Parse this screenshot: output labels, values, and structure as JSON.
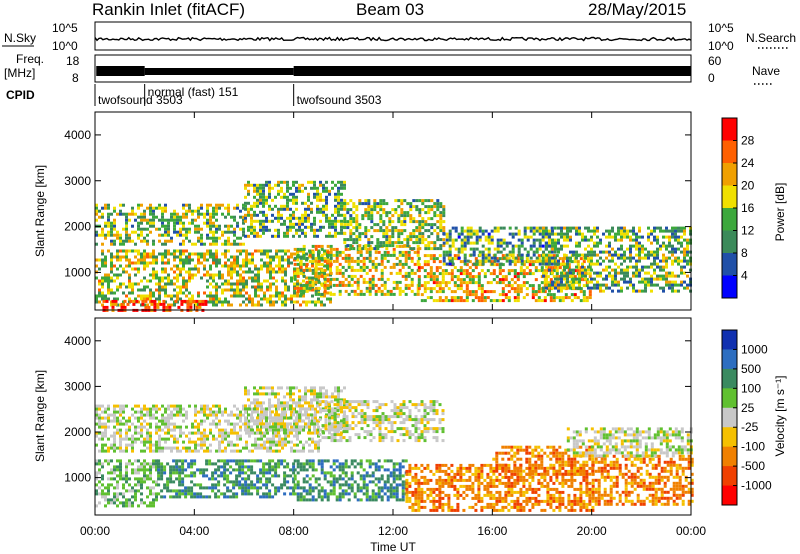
{
  "header": {
    "station": "Rankin Inlet (fitACF)",
    "beam": "Beam 03",
    "date": "28/May/2015"
  },
  "strip_labels": {
    "nsky": "N.Sky",
    "freq": "Freq.",
    "freq_unit": "[MHz]",
    "cpid": "CPID",
    "nsearch": "N.Search",
    "nave": "Nave",
    "nsky_ticks": [
      "10^5",
      "10^0"
    ],
    "freq_ticks": [
      "18",
      "8"
    ],
    "nave_ticks": [
      "60",
      "0"
    ]
  },
  "cpid_segments": [
    {
      "label": "twofsound 3503",
      "start_h": 0.0
    },
    {
      "label": "normal (fast) 151",
      "start_h": 2.0
    },
    {
      "label": "twofsound 3503",
      "start_h": 8.0
    }
  ],
  "x_axis": {
    "label": "Time UT",
    "ticks": [
      "00:00",
      "04:00",
      "08:00",
      "12:00",
      "16:00",
      "20:00",
      "00:00"
    ]
  },
  "colors": {
    "power_scale": [
      "#0000ff",
      "#2050a8",
      "#3b8a5a",
      "#3ca83c",
      "#f0e000",
      "#f0a000",
      "#ff6000",
      "#ff0000"
    ],
    "velocity_scale": [
      "#1030b0",
      "#2d6ec0",
      "#3a8a60",
      "#60c030",
      "#c8c8c8",
      "#f5c000",
      "#f08000",
      "#f04000",
      "#ff0000"
    ]
  },
  "chart_data": [
    {
      "type": "heatmap",
      "title": "Power",
      "xlabel": "Time UT",
      "ylabel": "Slant Range [km]",
      "xlim": [
        0,
        24
      ],
      "ylim": [
        180,
        4500
      ],
      "y_ticks": [
        1000,
        2000,
        3000,
        4000
      ],
      "colorbar": {
        "label": "Power [dB]",
        "ticks": [
          "4",
          "8",
          "12",
          "16",
          "20",
          "24",
          "28"
        ],
        "range": [
          0,
          30
        ]
      },
      "regions": [
        {
          "t0": 0.0,
          "t1": 6.0,
          "r0": 1600,
          "r1": 2500,
          "level": 14
        },
        {
          "t0": 0.0,
          "t1": 9.5,
          "r0": 300,
          "r1": 1500,
          "level": 16
        },
        {
          "t0": 0.3,
          "t1": 4.5,
          "r0": 180,
          "r1": 400,
          "level": 29
        },
        {
          "t0": 6.0,
          "t1": 10.0,
          "r0": 1800,
          "r1": 3000,
          "level": 12
        },
        {
          "t0": 8.0,
          "t1": 13.0,
          "r0": 500,
          "r1": 1600,
          "level": 18
        },
        {
          "t0": 10.0,
          "t1": 14.0,
          "r0": 1500,
          "r1": 2600,
          "level": 14
        },
        {
          "t0": 13.0,
          "t1": 20.0,
          "r0": 400,
          "r1": 1400,
          "level": 20
        },
        {
          "t0": 14.0,
          "t1": 18.5,
          "r0": 1200,
          "r1": 2000,
          "level": 10
        },
        {
          "t0": 18.0,
          "t1": 24.0,
          "r0": 600,
          "r1": 2000,
          "level": 12
        }
      ]
    },
    {
      "type": "heatmap",
      "title": "Velocity",
      "xlabel": "Time UT",
      "ylabel": "Slant Range [km]",
      "xlim": [
        0,
        24
      ],
      "ylim": [
        180,
        4500
      ],
      "y_ticks": [
        1000,
        2000,
        3000,
        4000
      ],
      "colorbar": {
        "label": "Velocity [m s⁻¹]",
        "ticks": [
          "1000",
          "500",
          "100",
          "25",
          "-25",
          "-100",
          "-500",
          "-1000"
        ]
      },
      "regions": [
        {
          "t0": 0.0,
          "t1": 9.0,
          "r0": 1600,
          "r1": 2600,
          "class": 4
        },
        {
          "t0": 0.0,
          "t1": 2.5,
          "r0": 400,
          "r1": 1400,
          "class": 3
        },
        {
          "t0": 2.5,
          "t1": 8.0,
          "r0": 600,
          "r1": 1400,
          "class": 2
        },
        {
          "t0": 6.0,
          "t1": 10.0,
          "r0": 2000,
          "r1": 3000,
          "class": 4
        },
        {
          "t0": 9.0,
          "t1": 14.0,
          "r0": 1800,
          "r1": 2700,
          "class": 4
        },
        {
          "t0": 8.0,
          "t1": 12.5,
          "r0": 500,
          "r1": 1400,
          "class": 2
        },
        {
          "t0": 12.5,
          "t1": 20.0,
          "r0": 300,
          "r1": 1300,
          "class": 6
        },
        {
          "t0": 16.0,
          "t1": 20.0,
          "r0": 1100,
          "r1": 1700,
          "class": 6
        },
        {
          "t0": 20.0,
          "t1": 24.0,
          "r0": 400,
          "r1": 1500,
          "class": 6
        },
        {
          "t0": 19.0,
          "t1": 24.0,
          "r0": 1500,
          "r1": 2100,
          "class": 4
        }
      ]
    }
  ]
}
